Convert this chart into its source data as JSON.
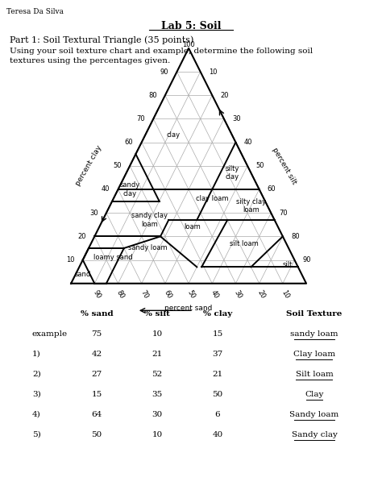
{
  "title": "Lab 5: Soil",
  "author": "Teresa Da Silva",
  "part1_title": "Part 1: Soil Textural Triangle (35 points)",
  "part1_desc1": "Using your soil texture chart and example, determine the following soil",
  "part1_desc2": "textures using the percentages given.",
  "table_headers": [
    "% sand",
    "% silt",
    "% clay",
    "Soil Texture"
  ],
  "table_rows": [
    [
      "example",
      "75",
      "10",
      "15",
      "sandy loam"
    ],
    [
      "1)",
      "42",
      "21",
      "37",
      "Clay loam"
    ],
    [
      "2)",
      "27",
      "52",
      "21",
      "Silt loam"
    ],
    [
      "3)",
      "15",
      "35",
      "50",
      "Clay"
    ],
    [
      "4)",
      "64",
      "30",
      "6",
      "Sandy loam"
    ],
    [
      "5)",
      "50",
      "10",
      "40",
      "Sandy clay"
    ]
  ],
  "bg_color": "#ffffff",
  "grid_color": "#aaaaaa",
  "region_line_color": "#000000",
  "region_labels": [
    [
      25,
      12,
      63,
      "clay",
      0,
      0
    ],
    [
      8,
      45,
      47,
      "silty\nclay",
      0,
      0
    ],
    [
      55,
      5,
      40,
      "sandy\nclay",
      0,
      0
    ],
    [
      22,
      42,
      36,
      "clay loam",
      0,
      0
    ],
    [
      7,
      60,
      33,
      "silty clay\nloam",
      0,
      0
    ],
    [
      53,
      20,
      27,
      "sandy clay\nloam",
      0,
      0
    ],
    [
      35,
      38,
      27,
      "loam",
      0,
      -0.03
    ],
    [
      18,
      65,
      17,
      "silt loam",
      0,
      0
    ],
    [
      60,
      25,
      15,
      "sandy loam",
      0,
      0
    ],
    [
      77,
      13,
      10,
      "loamy sand",
      0,
      0.01
    ],
    [
      91,
      5,
      4,
      "sand",
      -0.02,
      0
    ],
    [
      4,
      88,
      8,
      "silt",
      0,
      0
    ]
  ]
}
